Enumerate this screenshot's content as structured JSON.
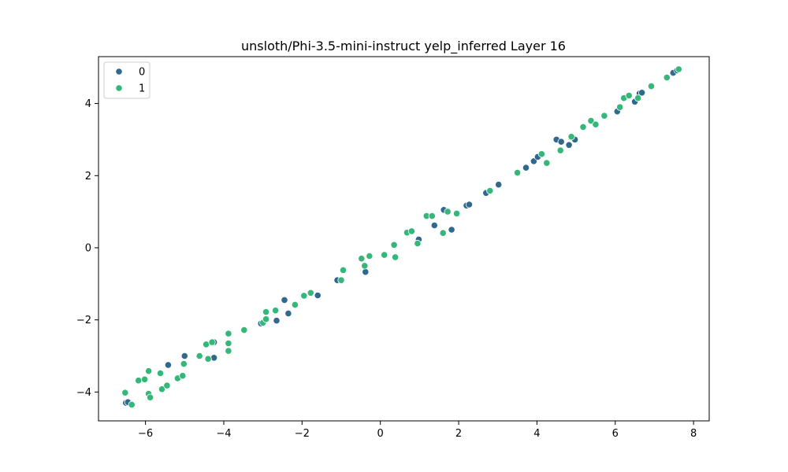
{
  "chart_data": {
    "type": "scatter",
    "title": "unsloth/Phi-3.5-mini-instruct yelp_inferred Layer 16",
    "xlabel": "",
    "ylabel": "",
    "xlim": [
      -7.2,
      8.4
    ],
    "ylim": [
      -4.8,
      5.3
    ],
    "xticks": [
      -6,
      -4,
      -2,
      0,
      2,
      4,
      6,
      8
    ],
    "yticks": [
      -4,
      -2,
      0,
      2,
      4
    ],
    "xtick_labels": [
      "−6",
      "−4",
      "−2",
      "0",
      "2",
      "4",
      "6",
      "8"
    ],
    "ytick_labels": [
      "−4",
      "−2",
      "0",
      "2",
      "4"
    ],
    "grid": false,
    "legend": {
      "placement": "top-left"
    },
    "series": [
      {
        "name": "0",
        "color": "#31688e",
        "points": [
          [
            -6.5,
            -4.3
          ],
          [
            -6.45,
            -4.28
          ],
          [
            -5.42,
            -3.25
          ],
          [
            -5.0,
            -3.0
          ],
          [
            -4.25,
            -3.05
          ],
          [
            -4.25,
            -2.62
          ],
          [
            -3.05,
            -2.1
          ],
          [
            -2.65,
            -2.02
          ],
          [
            -2.45,
            -1.45
          ],
          [
            -2.35,
            -1.82
          ],
          [
            -1.6,
            -1.32
          ],
          [
            -1.1,
            -0.9
          ],
          [
            -0.38,
            -0.67
          ],
          [
            0.98,
            0.23
          ],
          [
            1.38,
            0.62
          ],
          [
            1.62,
            1.05
          ],
          [
            1.82,
            0.5
          ],
          [
            2.2,
            1.17
          ],
          [
            2.27,
            1.2
          ],
          [
            2.7,
            1.52
          ],
          [
            3.02,
            1.75
          ],
          [
            3.72,
            2.22
          ],
          [
            3.92,
            2.4
          ],
          [
            4.02,
            2.52
          ],
          [
            4.5,
            3.0
          ],
          [
            4.62,
            2.94
          ],
          [
            4.82,
            2.85
          ],
          [
            4.97,
            3.0
          ],
          [
            6.05,
            3.78
          ],
          [
            6.5,
            4.05
          ],
          [
            6.62,
            4.28
          ],
          [
            6.68,
            4.3
          ],
          [
            7.48,
            4.85
          ],
          [
            7.58,
            4.92
          ]
        ]
      },
      {
        "name": "1",
        "color": "#35b779",
        "points": [
          [
            -6.52,
            -4.02
          ],
          [
            -6.35,
            -4.35
          ],
          [
            -6.18,
            -3.68
          ],
          [
            -6.02,
            -3.65
          ],
          [
            -5.92,
            -3.42
          ],
          [
            -5.92,
            -4.05
          ],
          [
            -5.88,
            -4.15
          ],
          [
            -5.62,
            -3.48
          ],
          [
            -5.58,
            -3.92
          ],
          [
            -5.45,
            -3.82
          ],
          [
            -5.18,
            -3.62
          ],
          [
            -5.05,
            -3.55
          ],
          [
            -5.02,
            -3.22
          ],
          [
            -4.62,
            -3.0
          ],
          [
            -4.45,
            -2.68
          ],
          [
            -4.4,
            -3.08
          ],
          [
            -4.3,
            -2.62
          ],
          [
            -3.88,
            -2.38
          ],
          [
            -3.88,
            -2.65
          ],
          [
            -3.88,
            -2.86
          ],
          [
            -3.48,
            -2.28
          ],
          [
            -3.0,
            -2.08
          ],
          [
            -2.92,
            -1.78
          ],
          [
            -2.92,
            -1.98
          ],
          [
            -2.68,
            -1.74
          ],
          [
            -2.18,
            -1.58
          ],
          [
            -1.95,
            -1.33
          ],
          [
            -1.78,
            -1.25
          ],
          [
            -1.0,
            -0.9
          ],
          [
            -0.95,
            -0.62
          ],
          [
            -0.48,
            -0.3
          ],
          [
            -0.4,
            -0.5
          ],
          [
            -0.28,
            -0.23
          ],
          [
            0.1,
            -0.2
          ],
          [
            0.35,
            0.08
          ],
          [
            0.38,
            -0.26
          ],
          [
            0.68,
            0.42
          ],
          [
            0.8,
            0.46
          ],
          [
            0.95,
            0.12
          ],
          [
            1.18,
            0.88
          ],
          [
            1.32,
            0.88
          ],
          [
            1.6,
            0.41
          ],
          [
            1.72,
            1.0
          ],
          [
            1.95,
            0.95
          ],
          [
            2.8,
            1.58
          ],
          [
            3.5,
            2.08
          ],
          [
            4.12,
            2.6
          ],
          [
            4.25,
            2.35
          ],
          [
            4.6,
            2.7
          ],
          [
            4.88,
            3.08
          ],
          [
            5.18,
            3.35
          ],
          [
            5.38,
            3.52
          ],
          [
            5.5,
            3.42
          ],
          [
            5.72,
            3.66
          ],
          [
            6.12,
            3.9
          ],
          [
            6.22,
            4.15
          ],
          [
            6.35,
            4.22
          ],
          [
            6.58,
            4.15
          ],
          [
            6.92,
            4.48
          ],
          [
            7.32,
            4.72
          ],
          [
            7.62,
            4.95
          ]
        ]
      }
    ]
  }
}
